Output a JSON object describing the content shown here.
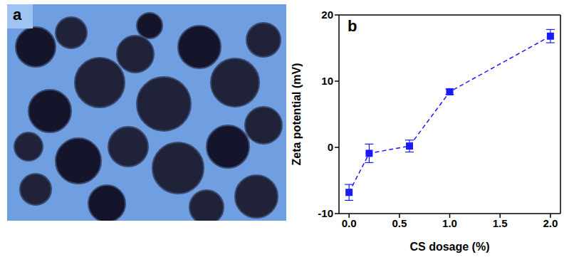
{
  "image": {
    "label": "a"
  },
  "chart_data": {
    "type": "line",
    "label": "b",
    "x_label": "CS dosage (%)",
    "y_label": "Zeta potential (mV)",
    "x": [
      0,
      0.2,
      0.6,
      1.0,
      2.0
    ],
    "values": [
      -6.8,
      -0.9,
      0.2,
      8.4,
      16.8
    ],
    "errors": [
      1.2,
      1.4,
      0.9,
      0.4,
      1.0
    ],
    "color": "#1a1aff",
    "marker": "square",
    "line_style": "dashed",
    "xlim": [
      -0.1,
      2.1
    ],
    "xticks": [
      {
        "value": 0,
        "label": "0.0"
      },
      {
        "value": 0.5,
        "label": "0.5"
      },
      {
        "value": 1,
        "label": "1.0"
      },
      {
        "value": 1.5,
        "label": "1.5"
      },
      {
        "value": 2,
        "label": "2.0"
      }
    ],
    "ylim": [
      -10,
      20
    ],
    "yticks": [
      -10,
      0,
      10,
      20
    ],
    "grid": false
  }
}
